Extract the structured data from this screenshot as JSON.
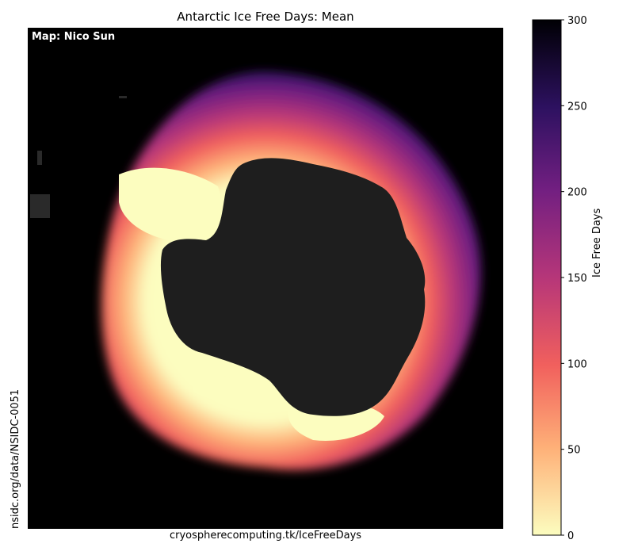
{
  "title": "Antarctic Ice Free Days: Mean",
  "credit": "Map: Nico Sun",
  "source_bottom": "cryospherecomputing.tk/IceFreeDays",
  "source_left": "nsidc.org/data/NSIDC-0051",
  "colorbar": {
    "label": "Ice Free Days",
    "min": 0,
    "max": 300,
    "ticks": [
      "0",
      "50",
      "100",
      "150",
      "200",
      "250",
      "300"
    ],
    "colormap": [
      "#fcfdbf",
      "#feb078",
      "#f1605d",
      "#b63679",
      "#721f81",
      "#2d1160",
      "#000004"
    ]
  },
  "colors": {
    "land": "#1e1e1e",
    "background": "#000000"
  }
}
